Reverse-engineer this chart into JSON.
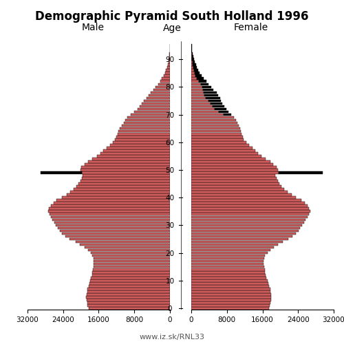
{
  "title": "Demographic Pyramid South Holland 1996",
  "male_label": "Male",
  "female_label": "Female",
  "age_label": "Age",
  "footnote": "www.iz.sk/RNL33",
  "xlim": 32000,
  "bar_color": "#cd5c5c",
  "bar_edge_color": "#000000",
  "bar_linewidth": 0.3,
  "ages": [
    0,
    1,
    2,
    3,
    4,
    5,
    6,
    7,
    8,
    9,
    10,
    11,
    12,
    13,
    14,
    15,
    16,
    17,
    18,
    19,
    20,
    21,
    22,
    23,
    24,
    25,
    26,
    27,
    28,
    29,
    30,
    31,
    32,
    33,
    34,
    35,
    36,
    37,
    38,
    39,
    40,
    41,
    42,
    43,
    44,
    45,
    46,
    47,
    48,
    49,
    50,
    51,
    52,
    53,
    54,
    55,
    56,
    57,
    58,
    59,
    60,
    61,
    62,
    63,
    64,
    65,
    66,
    67,
    68,
    69,
    70,
    71,
    72,
    73,
    74,
    75,
    76,
    77,
    78,
    79,
    80,
    81,
    82,
    83,
    84,
    85,
    86,
    87,
    88,
    89,
    90,
    91,
    92,
    93,
    94,
    95
  ],
  "male": [
    18200,
    18500,
    18600,
    18700,
    18800,
    18700,
    18600,
    18500,
    18300,
    18100,
    17900,
    17700,
    17500,
    17400,
    17300,
    17200,
    17100,
    17100,
    17200,
    17400,
    17800,
    18400,
    19200,
    20200,
    21200,
    22500,
    23500,
    24200,
    24800,
    25200,
    25600,
    26000,
    26400,
    26800,
    27100,
    27400,
    27200,
    26800,
    26200,
    25500,
    24200,
    23200,
    22400,
    21600,
    21000,
    20500,
    20100,
    19800,
    19600,
    29000,
    20100,
    19900,
    19100,
    18400,
    17400,
    16400,
    15600,
    15000,
    14200,
    13500,
    12800,
    12300,
    12100,
    11800,
    11600,
    11300,
    10800,
    10300,
    10000,
    9600,
    8800,
    8000,
    7300,
    6800,
    6300,
    5800,
    5300,
    4800,
    4300,
    3700,
    3200,
    2700,
    2200,
    1800,
    1400,
    1100,
    850,
    650,
    480,
    350,
    240,
    170,
    110,
    70,
    40,
    20
  ],
  "female": [
    17400,
    17600,
    17800,
    17900,
    18000,
    17900,
    17800,
    17700,
    17500,
    17300,
    17100,
    16900,
    16700,
    16600,
    16500,
    16400,
    16300,
    16300,
    16400,
    16600,
    17100,
    17700,
    18500,
    19500,
    20500,
    21800,
    22800,
    23500,
    24100,
    24500,
    24900,
    25300,
    25700,
    26100,
    26400,
    26700,
    26500,
    26100,
    25500,
    24800,
    23500,
    22500,
    21700,
    20900,
    20300,
    19800,
    19400,
    19100,
    18900,
    29500,
    19400,
    19200,
    18400,
    17700,
    16700,
    15700,
    15000,
    14400,
    13700,
    13000,
    12300,
    11800,
    11600,
    11300,
    11100,
    10900,
    10600,
    10300,
    10000,
    9600,
    9000,
    8400,
    7900,
    7400,
    7000,
    6700,
    6500,
    6100,
    5700,
    5000,
    4500,
    3900,
    3400,
    2800,
    2300,
    1900,
    1600,
    1300,
    1050,
    820,
    600,
    440,
    310,
    210,
    140,
    75
  ],
  "male_black": [
    0,
    0,
    0,
    0,
    0,
    0,
    0,
    0,
    0,
    0,
    0,
    0,
    0,
    0,
    0,
    0,
    0,
    0,
    0,
    0,
    0,
    0,
    0,
    0,
    0,
    0,
    0,
    0,
    0,
    0,
    0,
    0,
    0,
    0,
    0,
    0,
    0,
    0,
    0,
    0,
    0,
    0,
    0,
    0,
    0,
    0,
    0,
    0,
    0,
    9200,
    0,
    0,
    0,
    0,
    0,
    0,
    0,
    0,
    0,
    0,
    0,
    0,
    0,
    0,
    0,
    0,
    0,
    0,
    0,
    0,
    0,
    0,
    0,
    0,
    0,
    0,
    0,
    0,
    0,
    0,
    0,
    0,
    0,
    0,
    0,
    0,
    0,
    0,
    0,
    0,
    0,
    0,
    0,
    0,
    0,
    0
  ],
  "female_black": [
    0,
    0,
    0,
    0,
    0,
    0,
    0,
    0,
    0,
    0,
    0,
    0,
    0,
    0,
    0,
    0,
    0,
    0,
    0,
    0,
    0,
    0,
    0,
    0,
    0,
    0,
    0,
    0,
    0,
    0,
    0,
    0,
    0,
    0,
    0,
    0,
    0,
    0,
    0,
    0,
    0,
    0,
    0,
    0,
    0,
    0,
    0,
    0,
    0,
    9800,
    0,
    0,
    0,
    0,
    0,
    0,
    0,
    0,
    0,
    0,
    0,
    0,
    0,
    0,
    0,
    0,
    0,
    0,
    0,
    0,
    1800,
    2200,
    2600,
    2600,
    2700,
    2900,
    3200,
    3100,
    2900,
    2300,
    2100,
    1800,
    1700,
    1500,
    1300,
    1100,
    1000,
    850,
    700,
    570,
    420,
    300,
    210,
    145,
    95,
    50
  ]
}
